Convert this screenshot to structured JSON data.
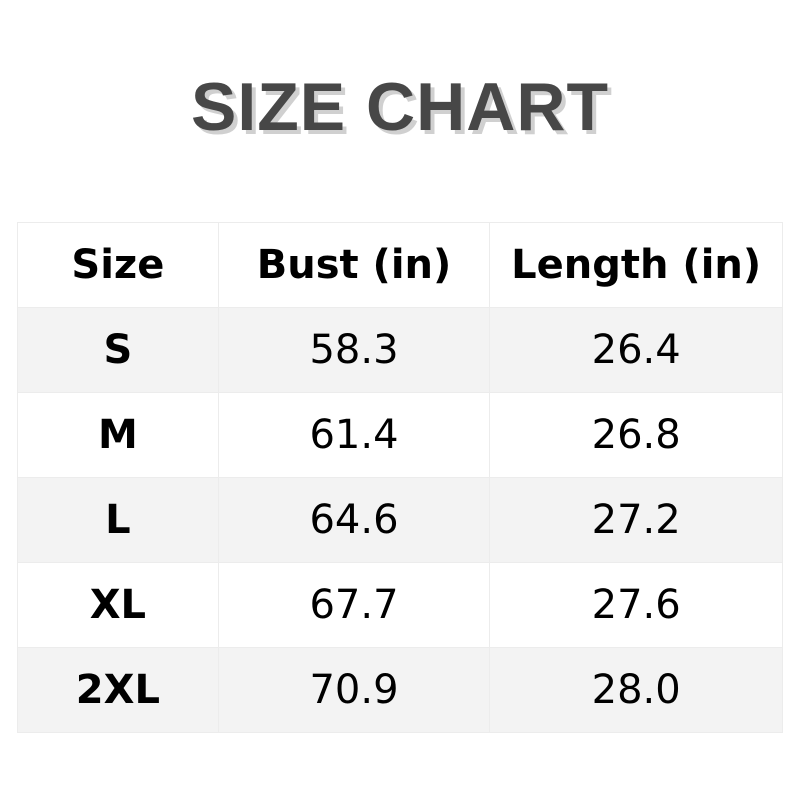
{
  "title": "SIZE CHART",
  "table": {
    "headers": [
      "Size",
      "Bust (in)",
      "Length (in)"
    ],
    "rows": [
      [
        "S",
        "58.3",
        "26.4"
      ],
      [
        "M",
        "61.4",
        "26.8"
      ],
      [
        "L",
        "64.6",
        "27.2"
      ],
      [
        "XL",
        "67.7",
        "27.6"
      ],
      [
        "2XL",
        "70.9",
        "28.0"
      ]
    ]
  }
}
